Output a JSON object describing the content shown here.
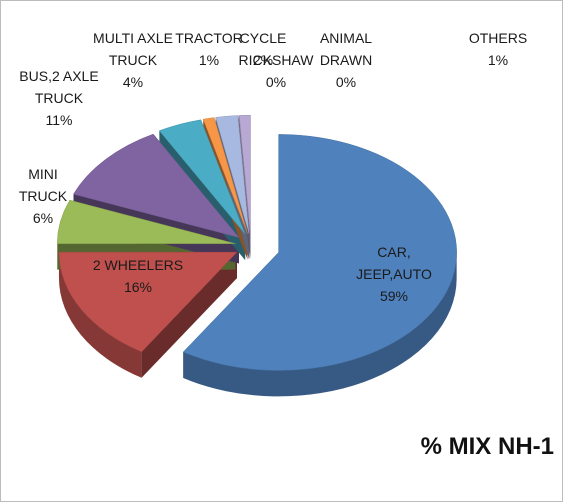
{
  "chart_data": {
    "type": "pie",
    "title": "% MIX NH-1",
    "categories": [
      "CAR, JEEP,AUTO",
      "2 WHEELERS",
      "MINI TRUCK",
      "BUS,2 AXLE TRUCK",
      "MULTI AXLE TRUCK",
      "TRACTOR",
      "CYCLE",
      "RICKSHAW",
      "ANIMAL DRAWN",
      "OTHERS"
    ],
    "values": [
      59,
      16,
      6,
      11,
      4,
      1,
      2,
      0,
      0,
      1
    ],
    "value_labels": [
      "59%",
      "16%",
      "6%",
      "11%",
      "4%",
      "1%",
      "2%",
      "0%",
      "0%",
      "1%"
    ],
    "colors": [
      "#4f81bd",
      "#c0504d",
      "#9bbb59",
      "#8064a2",
      "#4bacc6",
      "#f79646",
      "#a7b9e0",
      "#c5805a",
      "#9e8cbf",
      "#b7a9d4"
    ]
  }
}
